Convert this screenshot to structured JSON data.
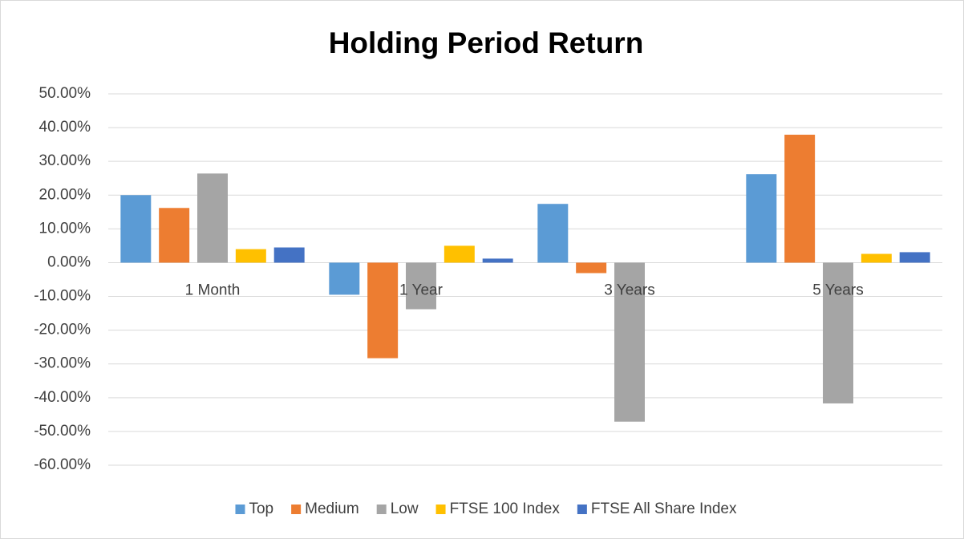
{
  "chart_data": {
    "type": "bar",
    "title": "Holding Period Return",
    "categories": [
      "1 Month",
      "1 Year",
      "3 Years",
      "5 Years"
    ],
    "series": [
      {
        "name": "Top",
        "color": "#5b9bd5",
        "values": [
          20.0,
          -9.5,
          17.4,
          26.2
        ]
      },
      {
        "name": "Medium",
        "color": "#ed7d31",
        "values": [
          16.2,
          -28.3,
          -3.1,
          37.9
        ]
      },
      {
        "name": "Low",
        "color": "#a5a5a5",
        "values": [
          26.4,
          -13.8,
          -47.1,
          -41.7
        ]
      },
      {
        "name": "FTSE 100 Index",
        "color": "#ffc000",
        "values": [
          4.0,
          5.0,
          0,
          2.6
        ]
      },
      {
        "name": "FTSE All Share Index",
        "color": "#4472c4",
        "values": [
          4.5,
          1.2,
          0,
          3.1
        ]
      }
    ],
    "ylim": [
      -60,
      50
    ],
    "yticks": [
      {
        "value": 50,
        "label": "50.00%"
      },
      {
        "value": 40,
        "label": "40.00%"
      },
      {
        "value": 30,
        "label": "30.00%"
      },
      {
        "value": 20,
        "label": "20.00%"
      },
      {
        "value": 10,
        "label": "10.00%"
      },
      {
        "value": 0,
        "label": "0.00%"
      },
      {
        "value": -10,
        "label": "-10.00%"
      },
      {
        "value": -20,
        "label": "-20.00%"
      },
      {
        "value": -30,
        "label": "-30.00%"
      },
      {
        "value": -40,
        "label": "-40.00%"
      },
      {
        "value": -50,
        "label": "-50.00%"
      },
      {
        "value": -60,
        "label": "-60.00%"
      }
    ],
    "grid": true,
    "legend": "bottom"
  }
}
